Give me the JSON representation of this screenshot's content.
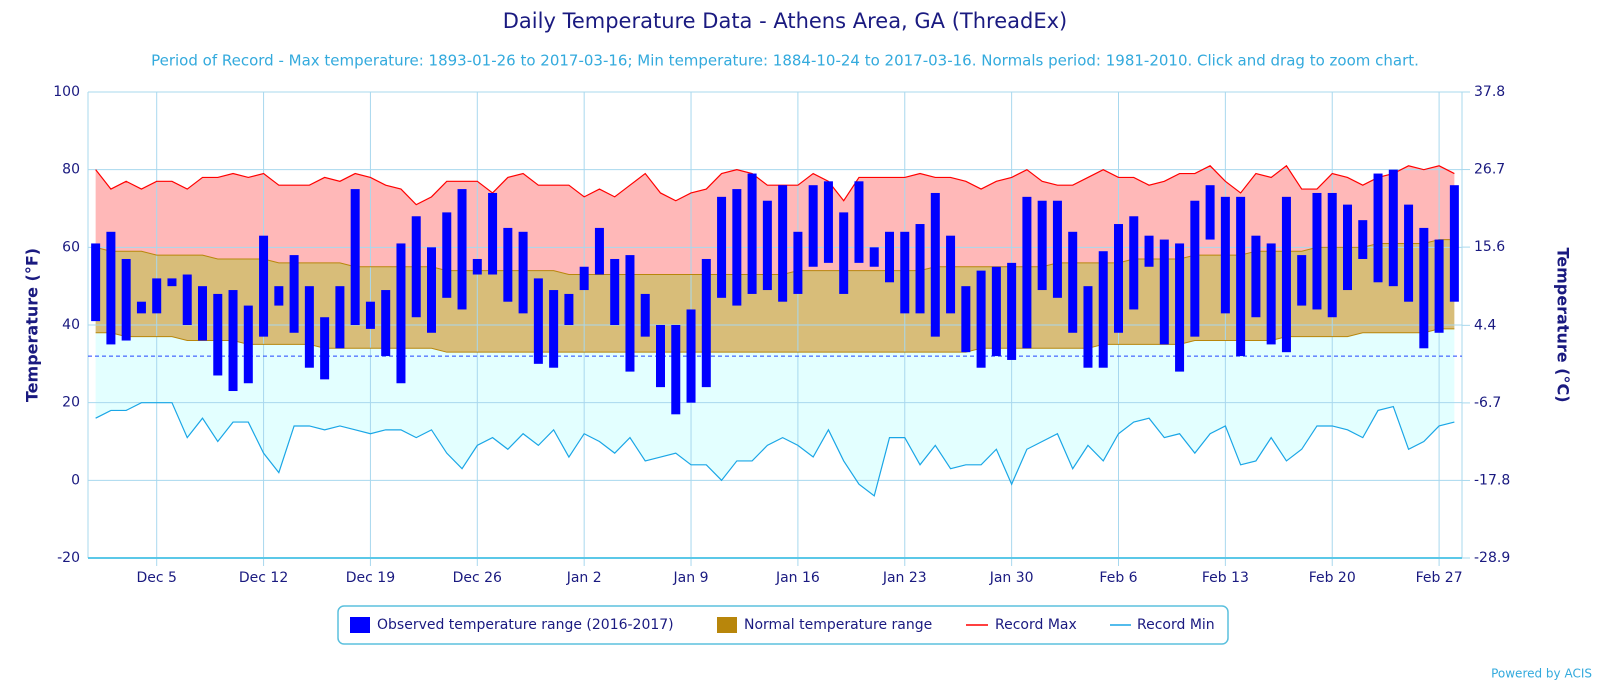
{
  "chart_data": {
    "type": "range",
    "title": "Daily Temperature Data - Athens Area, GA (ThreadEx)",
    "subtitle": "Period of Record - Max temperature: 1893-01-26 to 2017-03-16; Min temperature: 1884-10-24 to 2017-03-16. Normals period: 1981-2010. Click and drag to zoom chart.",
    "y_label": "Temperature (°F)",
    "y2_label": "Temperature (°C)",
    "credit": "Powered by ACIS",
    "categories": [
      null,
      null,
      null,
      null,
      "Dec 5",
      null,
      null,
      null,
      null,
      null,
      null,
      "Dec 12",
      null,
      null,
      null,
      null,
      null,
      null,
      "Dec 19",
      null,
      null,
      null,
      null,
      null,
      null,
      "Dec 26",
      null,
      null,
      null,
      null,
      null,
      null,
      "Jan 2",
      null,
      null,
      null,
      null,
      null,
      null,
      "Jan 9",
      null,
      null,
      null,
      null,
      null,
      null,
      "Jan 16",
      null,
      null,
      null,
      null,
      null,
      null,
      "Jan 23",
      null,
      null,
      null,
      null,
      null,
      null,
      "Jan 30",
      null,
      null,
      null,
      null,
      null,
      null,
      "Feb 6",
      null,
      null,
      null,
      null,
      null,
      null,
      "Feb 13",
      null,
      null,
      null,
      null,
      null,
      null,
      "Feb 20",
      null,
      null,
      null,
      null,
      null,
      null,
      "Feb 27",
      null
    ],
    "ylim": [
      -20,
      100
    ],
    "yticks": [
      -20,
      0,
      20,
      40,
      60,
      80,
      100
    ],
    "y2lim": [
      -28.9,
      37.8
    ],
    "y2ticks": [
      -28.9,
      -17.8,
      -6.7,
      4.4,
      15.6,
      26.7,
      37.8
    ],
    "reference_line": 32,
    "grid": true,
    "series": [
      {
        "name": "Observed temperature range (2016-2017)",
        "color": "#0000ff",
        "high": [
          61,
          64,
          57,
          46,
          52,
          52,
          53,
          50,
          48,
          49,
          45,
          63,
          50,
          58,
          50,
          42,
          50,
          75,
          46,
          49,
          61,
          68,
          60,
          69,
          75,
          57,
          74,
          65,
          64,
          52,
          49,
          48,
          55,
          65,
          57,
          58,
          48,
          40,
          40,
          44,
          57,
          73,
          75,
          79,
          72,
          76,
          64,
          76,
          77,
          69,
          77,
          60,
          64,
          64,
          66,
          74,
          63,
          50,
          54,
          55,
          56,
          73,
          72,
          72,
          64,
          50,
          59,
          66,
          68,
          63,
          62,
          61,
          72,
          76,
          73,
          73,
          63,
          61,
          73,
          58,
          74,
          74,
          71,
          67,
          79,
          80,
          71,
          65,
          62,
          76
        ],
        "low": [
          41,
          35,
          36,
          43,
          43,
          50,
          40,
          36,
          27,
          23,
          25,
          37,
          45,
          38,
          29,
          26,
          34,
          40,
          39,
          32,
          25,
          42,
          38,
          47,
          44,
          53,
          53,
          46,
          43,
          30,
          29,
          40,
          49,
          53,
          40,
          28,
          37,
          24,
          17,
          20,
          24,
          47,
          45,
          48,
          49,
          46,
          48,
          55,
          56,
          48,
          56,
          55,
          51,
          43,
          43,
          37,
          43,
          33,
          29,
          32,
          31,
          34,
          49,
          47,
          38,
          29,
          29,
          38,
          44,
          55,
          35,
          28,
          37,
          62,
          43,
          32,
          42,
          35,
          33,
          45,
          44,
          42,
          49,
          57,
          51,
          50,
          46,
          34,
          38,
          46
        ]
      },
      {
        "name": "Normal temperature range",
        "color": "#b8860b",
        "high": [
          60,
          59,
          59,
          59,
          58,
          58,
          58,
          58,
          57,
          57,
          57,
          57,
          56,
          56,
          56,
          56,
          56,
          55,
          55,
          55,
          55,
          55,
          55,
          54,
          54,
          54,
          54,
          54,
          54,
          54,
          54,
          53,
          53,
          53,
          53,
          53,
          53,
          53,
          53,
          53,
          53,
          53,
          53,
          53,
          53,
          53,
          54,
          54,
          54,
          54,
          54,
          54,
          54,
          54,
          54,
          55,
          55,
          55,
          55,
          55,
          55,
          55,
          55,
          56,
          56,
          56,
          56,
          56,
          57,
          57,
          57,
          57,
          58,
          58,
          58,
          58,
          59,
          59,
          59,
          59,
          60,
          60,
          60,
          60,
          61,
          61,
          61,
          61,
          62,
          62
        ],
        "low": [
          38,
          38,
          37,
          37,
          37,
          37,
          36,
          36,
          36,
          36,
          35,
          35,
          35,
          35,
          35,
          34,
          34,
          34,
          34,
          34,
          34,
          34,
          34,
          33,
          33,
          33,
          33,
          33,
          33,
          33,
          33,
          33,
          33,
          33,
          33,
          33,
          33,
          33,
          33,
          33,
          33,
          33,
          33,
          33,
          33,
          33,
          33,
          33,
          33,
          33,
          33,
          33,
          33,
          33,
          33,
          33,
          33,
          33,
          34,
          34,
          34,
          34,
          34,
          34,
          34,
          34,
          35,
          35,
          35,
          35,
          35,
          35,
          36,
          36,
          36,
          36,
          36,
          36,
          37,
          37,
          37,
          37,
          37,
          38,
          38,
          38,
          38,
          38,
          39,
          39
        ]
      },
      {
        "name": "Record Max",
        "color": "#ff0000",
        "values": [
          80,
          75,
          77,
          75,
          77,
          77,
          75,
          78,
          78,
          79,
          78,
          79,
          76,
          76,
          76,
          78,
          77,
          79,
          78,
          76,
          75,
          71,
          73,
          77,
          77,
          77,
          74,
          78,
          79,
          76,
          76,
          76,
          73,
          75,
          73,
          76,
          79,
          74,
          72,
          74,
          75,
          79,
          80,
          79,
          76,
          76,
          76,
          79,
          77,
          72,
          78,
          78,
          78,
          78,
          79,
          78,
          78,
          77,
          75,
          77,
          78,
          80,
          77,
          76,
          76,
          78,
          80,
          78,
          78,
          76,
          77,
          79,
          79,
          81,
          77,
          74,
          79,
          78,
          81,
          75,
          75,
          79,
          78,
          76,
          78,
          79,
          81,
          80,
          81,
          79
        ]
      },
      {
        "name": "Record Min",
        "color": "#1aa6e6",
        "values": [
          16,
          18,
          18,
          20,
          20,
          20,
          11,
          16,
          10,
          15,
          15,
          7,
          2,
          14,
          14,
          13,
          14,
          13,
          12,
          13,
          13,
          11,
          13,
          7,
          3,
          9,
          11,
          8,
          12,
          9,
          13,
          6,
          12,
          10,
          7,
          11,
          5,
          6,
          7,
          4,
          4,
          0,
          5,
          5,
          9,
          11,
          9,
          6,
          13,
          5,
          -1,
          -4,
          11,
          11,
          4,
          9,
          3,
          4,
          4,
          8,
          -1,
          8,
          10,
          12,
          3,
          9,
          5,
          12,
          15,
          16,
          11,
          12,
          7,
          12,
          14,
          4,
          5,
          11,
          5,
          8,
          14,
          14,
          13,
          11,
          18,
          19,
          8,
          10,
          14,
          15
        ]
      }
    ]
  }
}
